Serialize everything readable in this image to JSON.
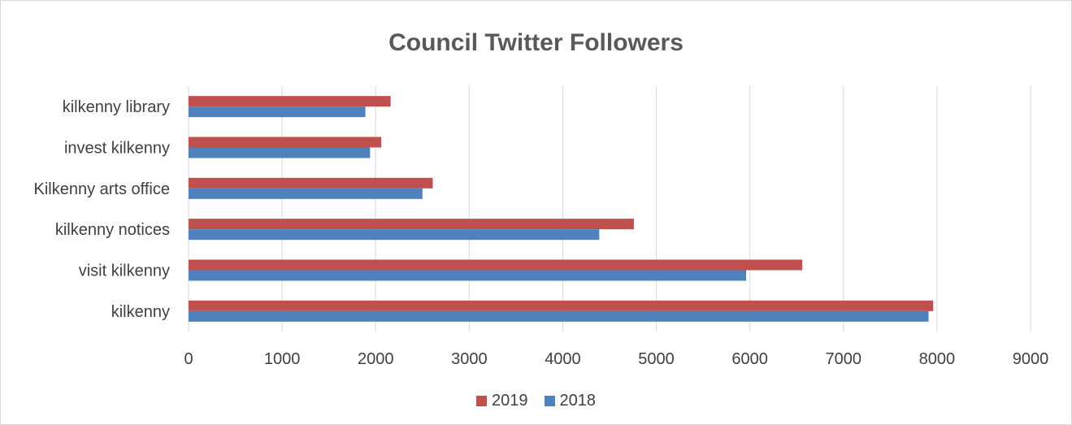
{
  "chart_data": {
    "type": "bar",
    "orientation": "horizontal",
    "title": "Council Twitter Followers",
    "categories": [
      "kilkenny",
      "visit kilkenny",
      "kilkenny notices",
      "Kilkenny arts office",
      "invest kilkenny",
      "kilkenny library"
    ],
    "series": [
      {
        "name": "2019",
        "color": "#c0504d",
        "values": [
          7960,
          6560,
          4760,
          2610,
          2060,
          2160
        ]
      },
      {
        "name": "2018",
        "color": "#4f81bd",
        "values": [
          7910,
          5960,
          4390,
          2500,
          1940,
          1890
        ]
      }
    ],
    "xlim": [
      0,
      9000
    ],
    "xticks": [
      0,
      1000,
      2000,
      3000,
      4000,
      5000,
      6000,
      7000,
      8000,
      9000
    ],
    "xtick_labels": [
      "0",
      "1000",
      "2000",
      "3000",
      "4000",
      "5000",
      "6000",
      "7000",
      "8000",
      "9000"
    ],
    "grid": true,
    "legend_position": "bottom"
  }
}
